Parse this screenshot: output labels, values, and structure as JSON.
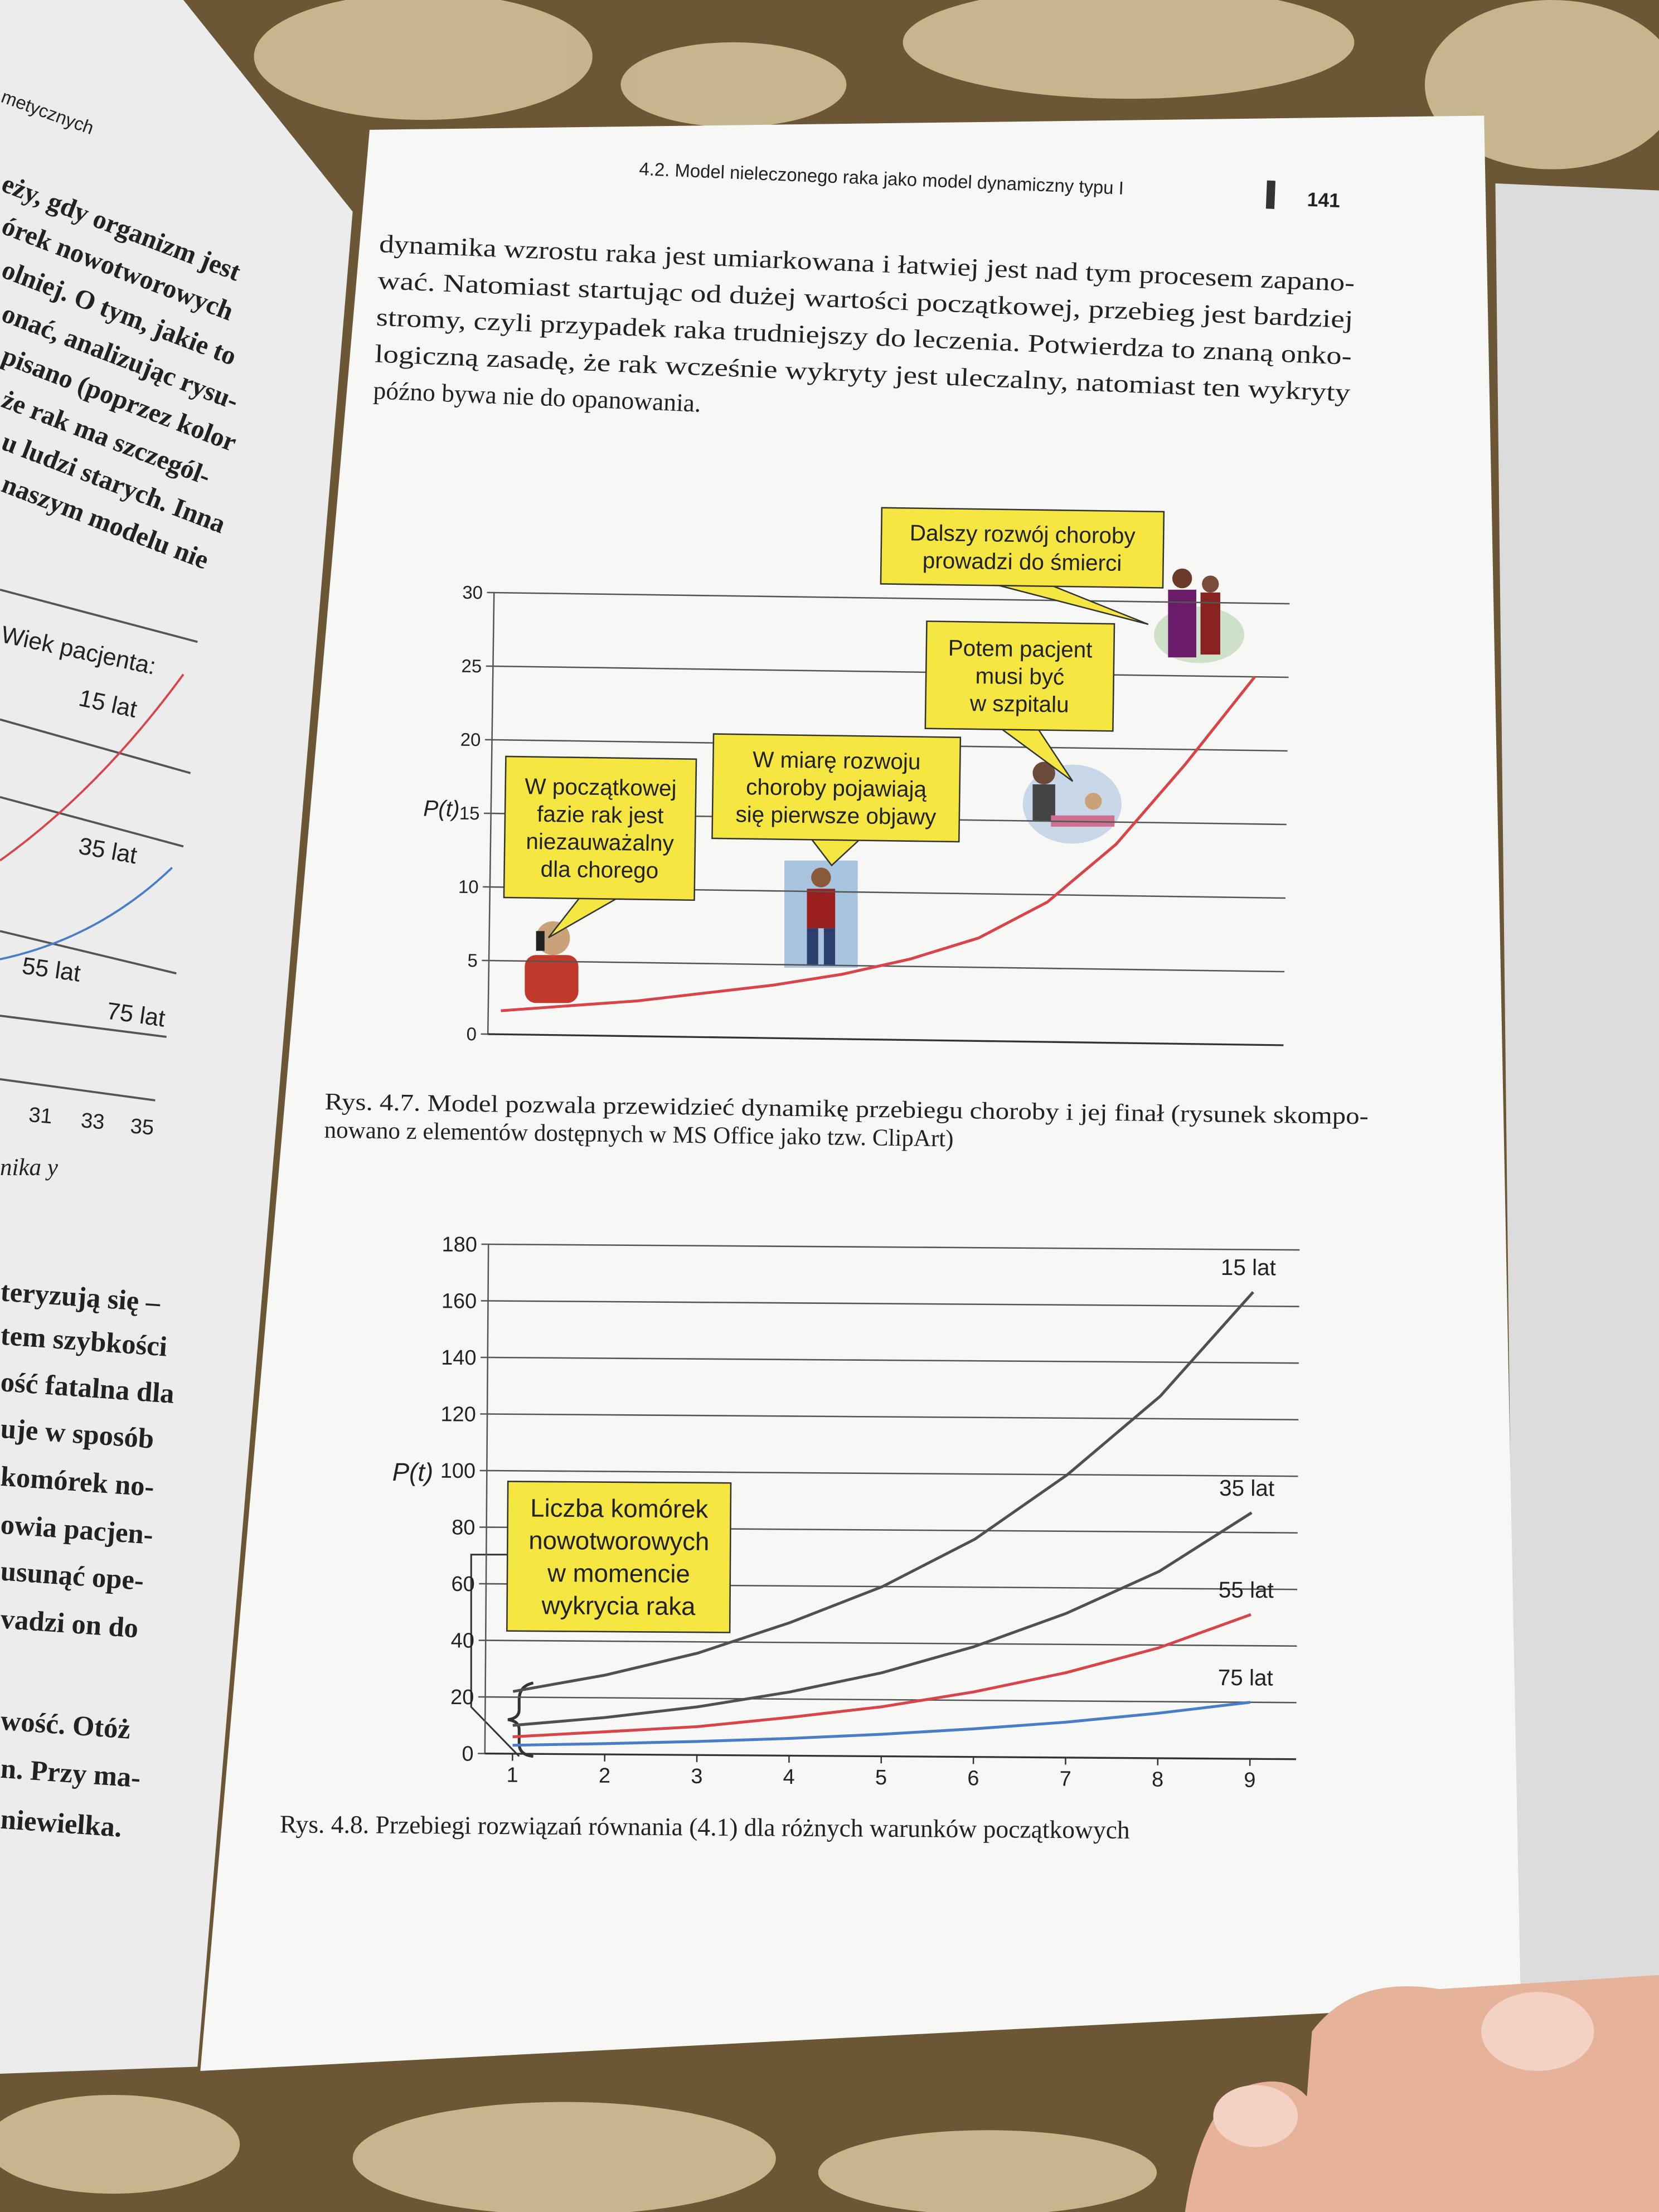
{
  "left_page": {
    "header": "metycznych",
    "top_lines": [
      "eży, gdy organizm jest",
      "órek nowotworowych",
      "olniej. O tym, jakie to",
      "onać, analizując rysu-",
      "pisano (poprzez kolor",
      "że rak ma szczegól-",
      "u ludzi starych. Inna",
      "naszym modelu nie"
    ],
    "figure_labels": [
      "Wiek pacjenta:",
      "15 lat",
      "35 lat",
      "55 lat",
      "75 lat"
    ],
    "axis_ticks": [
      "31",
      "33",
      "35"
    ],
    "axis_label": "nika y",
    "bottom_lines": [
      "teryzują się –",
      "tem szybkości",
      "ość fatalna dla",
      "uje w sposób",
      "komórek no-",
      "owia pacjen-",
      "usunąć ope-",
      "vadzi on do",
      "wość. Otóż",
      "n. Przy ma-",
      "niewielka."
    ]
  },
  "right_page": {
    "header": "4.2. Model nieleczonego raka jako model dynamiczny typu I",
    "page_number": "141",
    "paragraph": [
      "dynamika wzrostu raka jest umiarkowana i łatwiej jest nad tym procesem zapano-",
      "wać. Natomiast startując od dużej wartości początkowej, przebieg jest bardziej",
      "stromy, czyli przypadek raka trudniejszy do leczenia. Potwierdza to znaną onko-",
      "logiczną zasadę, że rak wcześnie wykryty jest uleczalny, natomiast ten wykryty",
      "późno bywa nie do opanowania."
    ]
  },
  "chart_data": [
    {
      "type": "line",
      "y_label": "P(t)",
      "categories": [
        null,
        null,
        null,
        null,
        null,
        null,
        null,
        null,
        null,
        null,
        null,
        null
      ],
      "values": [
        1.6,
        2.0,
        2.4,
        3.0,
        3.6,
        4.4,
        5.5,
        7.0,
        9.5,
        13.5,
        19,
        25
      ],
      "color": "#d9434a",
      "ylim": [
        0,
        30
      ],
      "yticks": [
        0,
        5,
        10,
        15,
        20,
        25,
        30
      ],
      "grid": true,
      "annotations": [
        {
          "lines": [
            "W początkowej",
            "fazie rak jest",
            "niezauważalny",
            "dla chorego"
          ]
        },
        {
          "lines": [
            "W miarę rozwoju",
            "choroby pojawiają",
            "się pierwsze objawy"
          ]
        },
        {
          "lines": [
            "Potem pacjent",
            "musi być",
            "w szpitalu"
          ]
        },
        {
          "lines": [
            "Dalszy rozwój choroby",
            "prowadzi do śmierci"
          ]
        }
      ],
      "caption": [
        "Rys. 4.7. Model pozwala przewidzieć dynamikę przebiegu choroby i jej finał (rysunek skompo-",
        "nowano z elementów dostępnych w MS Office jako tzw. ClipArt)"
      ]
    },
    {
      "type": "line",
      "y_label": "P(t)",
      "x": [
        1,
        2,
        3,
        4,
        5,
        6,
        7,
        8,
        9
      ],
      "xlim": [
        0.7,
        9.5
      ],
      "xticks": [
        1,
        2,
        3,
        4,
        5,
        6,
        7,
        8,
        9
      ],
      "ylim": [
        0,
        180
      ],
      "yticks": [
        0,
        20,
        40,
        60,
        80,
        100,
        120,
        140,
        160,
        180
      ],
      "grid": true,
      "series": [
        {
          "name": "15 lat",
          "color": "#505050",
          "values": [
            22,
            28,
            36,
            47,
            60,
            77,
            100,
            128,
            165
          ]
        },
        {
          "name": "35 lat",
          "color": "#505050",
          "values": [
            10,
            13,
            17,
            22.5,
            29.5,
            39,
            51,
            66,
            87
          ]
        },
        {
          "name": "55 lat",
          "color": "#d9434a",
          "values": [
            6,
            8,
            10,
            13.5,
            17.5,
            23,
            30,
            39,
            51
          ]
        },
        {
          "name": "75 lat",
          "color": "#4a7cc8",
          "values": [
            3,
            3.8,
            4.8,
            6.1,
            7.8,
            9.9,
            12.5,
            15.9,
            20
          ]
        }
      ],
      "annotations": [
        {
          "lines": [
            "Liczba komórek",
            "nowotworowych",
            "w momencie",
            "wykrycia raka"
          ]
        }
      ],
      "caption": [
        "Rys. 4.8. Przebiegi rozwiązań równania (4.1) dla różnych warunków początkowych"
      ]
    }
  ]
}
